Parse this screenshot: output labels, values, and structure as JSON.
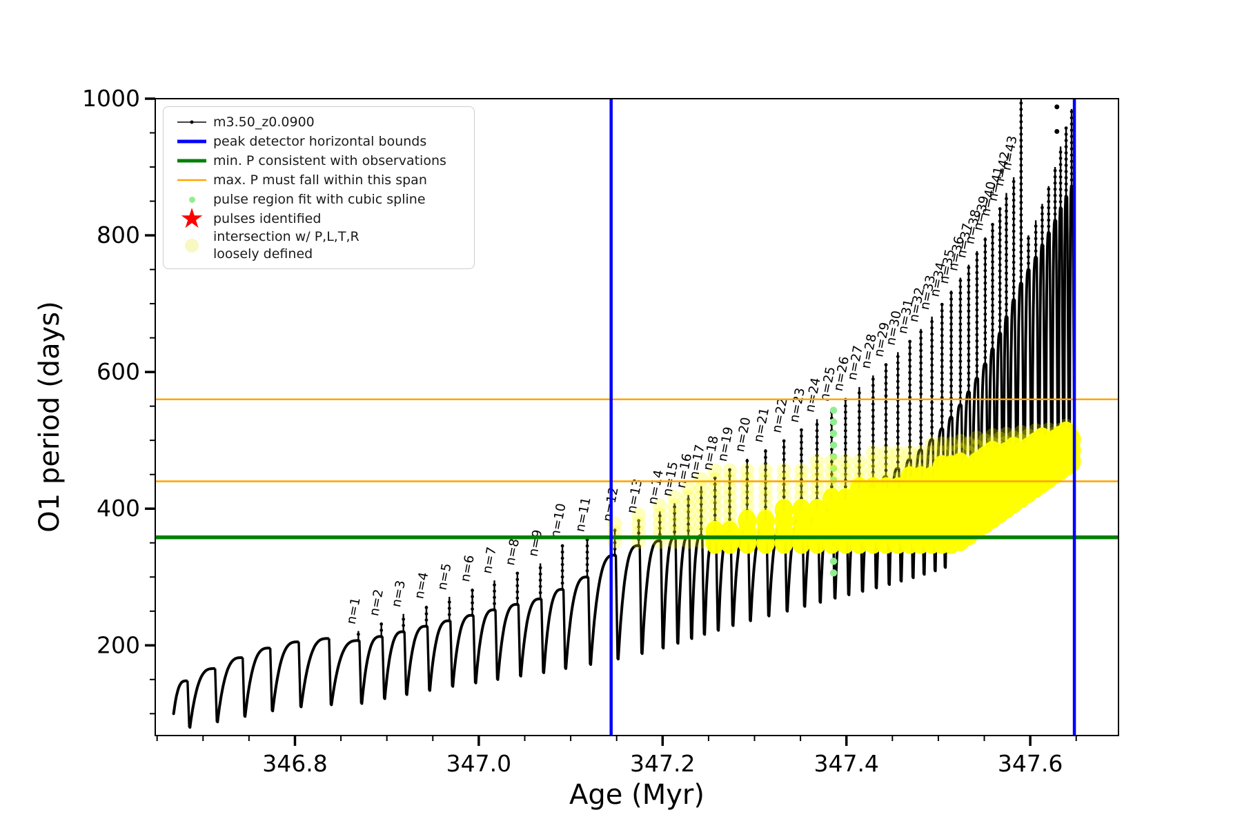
{
  "legend": {
    "items": [
      {
        "marker": "line-dot",
        "color": "#000000",
        "lw": 1.5,
        "label": "m3.50_z0.0900"
      },
      {
        "marker": "line",
        "color": "#0000ff",
        "lw": 5,
        "label": "peak detector horizontal bounds"
      },
      {
        "marker": "line",
        "color": "#008000",
        "lw": 5,
        "label": "min. P consistent with observations"
      },
      {
        "marker": "line",
        "color": "#ffa500",
        "lw": 2.5,
        "label": "max. P must fall within this span"
      },
      {
        "marker": "dot",
        "color": "#90ee90",
        "size": 9,
        "label": "pulse region fit with cubic spline"
      },
      {
        "marker": "star",
        "color": "#ff0000",
        "size": 40,
        "label": "pulses identified"
      },
      {
        "marker": "dot",
        "color": "#f8f8c2",
        "size": 20,
        "label": "intersection w/ P,L,T,R\nloosely defined"
      }
    ]
  },
  "chart_data": {
    "type": "line",
    "title": "",
    "series_label": "m3.50_z0.0900",
    "xlabel": "Age (Myr)",
    "ylabel": "O1 period (days)",
    "xlim": [
      346.648,
      347.696
    ],
    "ylim": [
      68,
      1000
    ],
    "x_major_ticks": [
      346.8,
      347.0,
      347.2,
      347.4,
      347.6
    ],
    "x_tick_labels": [
      "346.8",
      "347.0",
      "347.2",
      "347.4",
      "347.6"
    ],
    "x_minor_step": 0.05,
    "y_major_ticks": [
      200,
      400,
      600,
      800,
      1000
    ],
    "y_tick_labels": [
      "200",
      "400",
      "600",
      "800",
      "1000"
    ],
    "y_minor_step": 50,
    "grid": false,
    "legend_position": "upper left",
    "colors": {
      "series": "#000000",
      "peak_detector_bounds": "#0000ff",
      "min_p_line": "#008000",
      "max_p_span": "#ffa500",
      "spline_dots": "#90ee90",
      "pulses_identified": "#ff0000",
      "intersection": "#ffff00",
      "intersection_loose": "rgba(255,255,0,0.26)"
    },
    "peak_detector_bounds_x": [
      347.144,
      347.648
    ],
    "min_p_line_y": 358,
    "max_p_span_y": [
      440,
      560
    ],
    "pulse_label_format": "n={n}",
    "lead_in_start": [
      346.668,
      100
    ],
    "pulses": [
      {
        "n": null,
        "age": 346.682,
        "tip": 148,
        "hump": 148,
        "dip": 80
      },
      {
        "n": null,
        "age": 346.712,
        "tip": 166,
        "hump": 166,
        "dip": 88
      },
      {
        "n": null,
        "age": 346.742,
        "tip": 184,
        "hump": 182,
        "dip": 96
      },
      {
        "n": null,
        "age": 346.772,
        "tip": 198,
        "hump": 196,
        "dip": 104
      },
      {
        "n": null,
        "age": 346.803,
        "tip": 208,
        "hump": 205,
        "dip": 110
      },
      {
        "n": null,
        "age": 346.836,
        "tip": 215,
        "hump": 210,
        "dip": 113
      },
      {
        "n": 1,
        "age": 346.869,
        "tip": 221,
        "hump": 207,
        "dip": 115
      },
      {
        "n": 2,
        "age": 346.894,
        "tip": 233,
        "hump": 213,
        "dip": 122
      },
      {
        "n": 3,
        "age": 346.918,
        "tip": 246,
        "hump": 220,
        "dip": 128
      },
      {
        "n": 4,
        "age": 346.943,
        "tip": 258,
        "hump": 228,
        "dip": 134
      },
      {
        "n": 5,
        "age": 346.968,
        "tip": 271,
        "hump": 236,
        "dip": 140
      },
      {
        "n": 6,
        "age": 346.993,
        "tip": 283,
        "hump": 244,
        "dip": 145
      },
      {
        "n": 7,
        "age": 347.017,
        "tip": 295,
        "hump": 252,
        "dip": 150
      },
      {
        "n": 8,
        "age": 347.042,
        "tip": 307,
        "hump": 260,
        "dip": 155
      },
      {
        "n": 9,
        "age": 347.067,
        "tip": 320,
        "hump": 268,
        "dip": 160
      },
      {
        "n": 10,
        "age": 347.091,
        "tip": 347,
        "hump": 282,
        "dip": 166
      },
      {
        "n": 11,
        "age": 347.118,
        "tip": 356,
        "hump": 300,
        "dip": 172
      },
      {
        "n": 12,
        "age": 347.148,
        "tip": 371,
        "hump": 332,
        "dip": 180
      },
      {
        "n": 13,
        "age": 347.174,
        "tip": 383,
        "hump": 346,
        "dip": 188
      },
      {
        "n": 14,
        "age": 347.197,
        "tip": 396,
        "hump": 353,
        "dip": 196
      },
      {
        "n": 15,
        "age": 347.213,
        "tip": 408,
        "hump": 357,
        "dip": 203
      },
      {
        "n": 16,
        "age": 347.228,
        "tip": 420,
        "hump": 359,
        "dip": 210
      },
      {
        "n": 17,
        "age": 347.242,
        "tip": 433,
        "hump": 361,
        "dip": 216
      },
      {
        "n": 18,
        "age": 347.257,
        "tip": 446,
        "hump": 363,
        "dip": 222
      },
      {
        "n": 19,
        "age": 347.273,
        "tip": 459,
        "hump": 366,
        "dip": 229
      },
      {
        "n": 20,
        "age": 347.292,
        "tip": 473,
        "hump": 370,
        "dip": 236
      },
      {
        "n": 21,
        "age": 347.312,
        "tip": 487,
        "hump": 375,
        "dip": 243
      },
      {
        "n": 22,
        "age": 347.332,
        "tip": 501,
        "hump": 381,
        "dip": 250
      },
      {
        "n": 23,
        "age": 347.351,
        "tip": 516,
        "hump": 388,
        "dip": 257
      },
      {
        "n": 24,
        "age": 347.368,
        "tip": 531,
        "hump": 396,
        "dip": 263
      },
      {
        "n": 25,
        "age": 347.384,
        "tip": 547,
        "hump": 405,
        "dip": 269
      },
      {
        "n": 26,
        "age": 347.399,
        "tip": 562,
        "hump": 414,
        "dip": 274
      },
      {
        "n": 27,
        "age": 347.414,
        "tip": 578,
        "hump": 424,
        "dip": 279
      },
      {
        "n": 28,
        "age": 347.429,
        "tip": 595,
        "hump": 435,
        "dip": 284
      },
      {
        "n": 29,
        "age": 347.443,
        "tip": 612,
        "hump": 447,
        "dip": 289
      },
      {
        "n": 30,
        "age": 347.456,
        "tip": 629,
        "hump": 459,
        "dip": 294
      },
      {
        "n": 31,
        "age": 347.469,
        "tip": 646,
        "hump": 472,
        "dip": 299
      },
      {
        "n": 32,
        "age": 347.481,
        "tip": 663,
        "hump": 486,
        "dip": 304
      },
      {
        "n": 33,
        "age": 347.493,
        "tip": 681,
        "hump": 501,
        "dip": 309
      },
      {
        "n": 34,
        "age": 347.504,
        "tip": 700,
        "hump": 517,
        "dip": 314
      },
      {
        "n": 35,
        "age": 347.514,
        "tip": 719,
        "hump": 534,
        "dip": 355
      },
      {
        "n": 36,
        "age": 347.524,
        "tip": 738,
        "hump": 552,
        "dip": 368
      },
      {
        "n": 37,
        "age": 347.533,
        "tip": 757,
        "hump": 571,
        "dip": 376
      },
      {
        "n": 38,
        "age": 347.542,
        "tip": 777,
        "hump": 591,
        "dip": 384
      },
      {
        "n": 39,
        "age": 347.551,
        "tip": 797,
        "hump": 612,
        "dip": 392
      },
      {
        "n": 40,
        "age": 347.559,
        "tip": 818,
        "hump": 634,
        "dip": 400
      },
      {
        "n": 41,
        "age": 347.567,
        "tip": 840,
        "hump": 657,
        "dip": 408
      },
      {
        "n": 42,
        "age": 347.574,
        "tip": 862,
        "hump": 681,
        "dip": 416
      },
      {
        "n": 43,
        "age": 347.582,
        "tip": 885,
        "hump": 706,
        "dip": 424
      },
      {
        "n": null,
        "age": 347.59,
        "tip": 1005,
        "hump": 730,
        "dip": 432
      },
      {
        "n": null,
        "age": 347.598,
        "tip": 800,
        "hump": 750,
        "dip": 440
      },
      {
        "n": null,
        "age": 347.606,
        "tip": 822,
        "hump": 768,
        "dip": 447
      },
      {
        "n": null,
        "age": 347.613,
        "tip": 846,
        "hump": 786,
        "dip": 453
      },
      {
        "n": null,
        "age": 347.62,
        "tip": 872,
        "hump": 804,
        "dip": 459
      },
      {
        "n": null,
        "age": 347.627,
        "tip": 900,
        "hump": 822,
        "dip": 464
      },
      {
        "n": null,
        "age": 347.633,
        "tip": 930,
        "hump": 840,
        "dip": 468
      },
      {
        "n": null,
        "age": 347.639,
        "tip": 958,
        "hump": 857,
        "dip": 472
      },
      {
        "n": null,
        "age": 347.645,
        "tip": 985,
        "hump": 872,
        "dip": 476
      }
    ],
    "spline_fit_dots": {
      "age": 347.386,
      "v_min": 306,
      "v_max": 544,
      "step": 17
    },
    "intersection_region": {
      "age_min": 347.25,
      "age_max": 347.648,
      "bottom_v": 350,
      "bottom_rise_start": 347.52,
      "bottom_v_end": 472,
      "top_v_start": 370,
      "top_v_end": 516
    },
    "loose_region": {
      "age_min": 347.145,
      "age_max": 347.648,
      "bottom_v": 352,
      "bottom_rise_start": 347.52,
      "bottom_v_end": 478,
      "top_cap_start": 458,
      "top_cap_slope_per_myr": 195,
      "top_cap_ref_age": 347.3,
      "tip_pad": 16
    },
    "stray_points": [
      [
        347.629,
        988
      ],
      [
        347.629,
        952
      ]
    ]
  }
}
